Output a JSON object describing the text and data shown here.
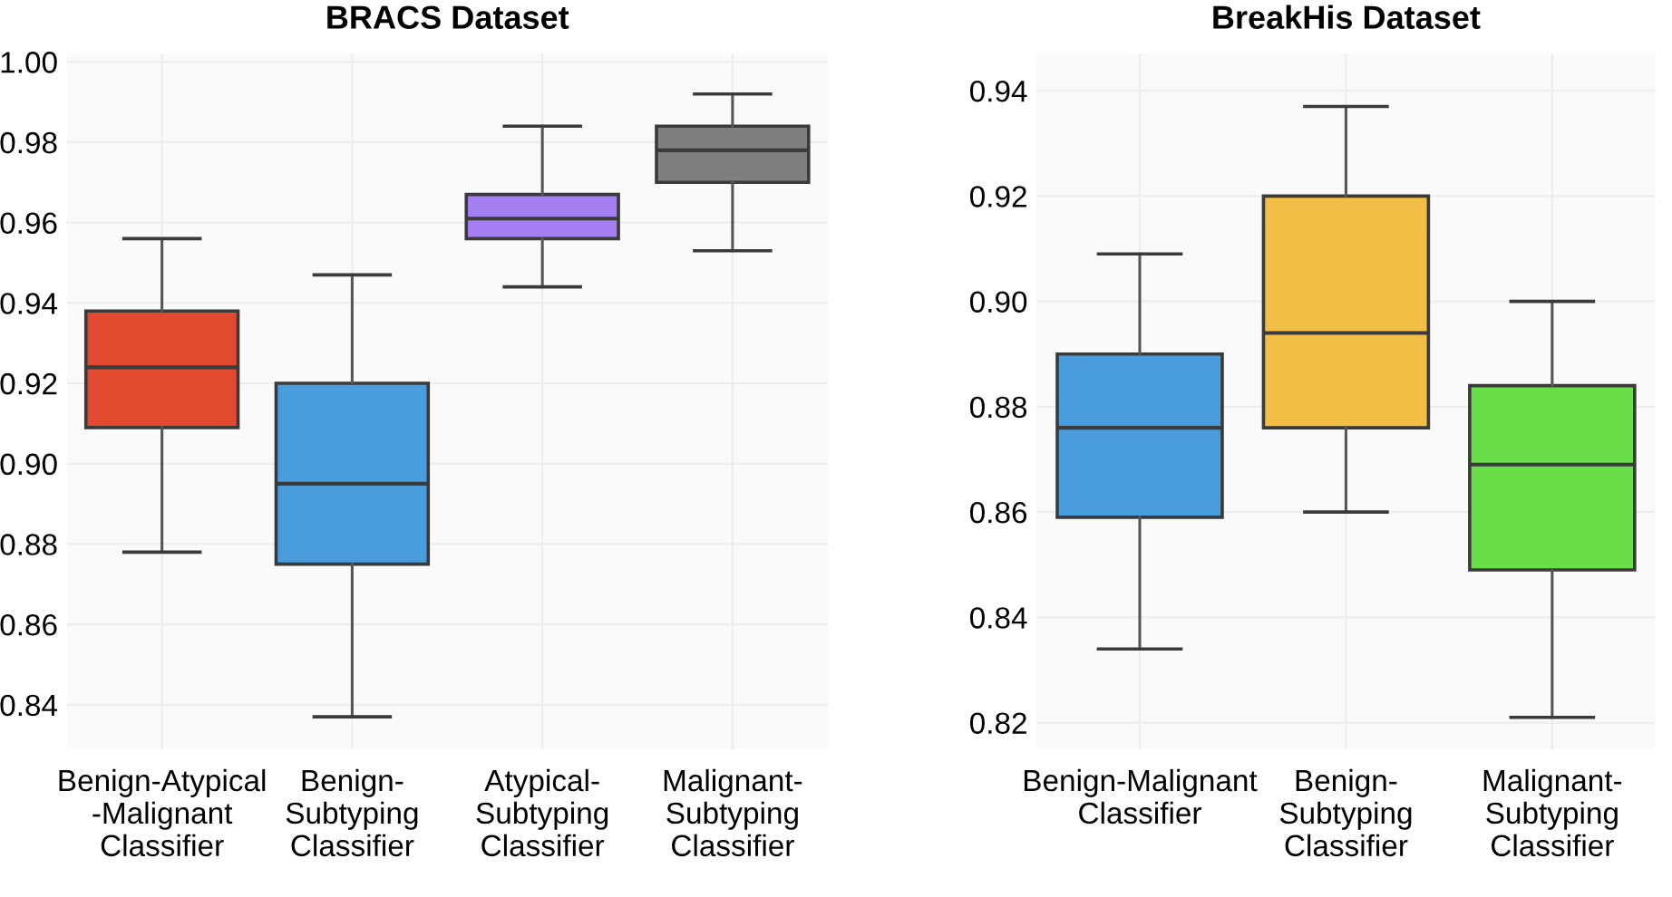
{
  "chart_data": [
    {
      "type": "box",
      "title": "BRACS Dataset",
      "categories": [
        "Benign-Atypical\n-Malignant\nClassifier",
        "Benign-\nSubtyping\nClassifier",
        "Atypical-\nSubtyping\nClassifier",
        "Malignant-\nSubtyping\nClassifier"
      ],
      "colors": [
        "#e24a2f",
        "#4a9ddc",
        "#a47ff2",
        "#7f7f7f"
      ],
      "boxes": [
        {
          "low": 0.878,
          "q1": 0.909,
          "median": 0.924,
          "q3": 0.938,
          "high": 0.956
        },
        {
          "low": 0.837,
          "q1": 0.875,
          "median": 0.895,
          "q3": 0.92,
          "high": 0.947
        },
        {
          "low": 0.944,
          "q1": 0.956,
          "median": 0.961,
          "q3": 0.967,
          "high": 0.984
        },
        {
          "low": 0.953,
          "q1": 0.97,
          "median": 0.978,
          "q3": 0.984,
          "high": 0.992
        }
      ],
      "ylim": [
        0.829,
        1.002
      ],
      "yticks": [
        {
          "value": 0.84,
          "label": "0.84"
        },
        {
          "value": 0.86,
          "label": "0.86"
        },
        {
          "value": 0.88,
          "label": "0.88"
        },
        {
          "value": 0.9,
          "label": "0.90"
        },
        {
          "value": 0.92,
          "label": "0.92"
        },
        {
          "value": 0.94,
          "label": "0.94"
        },
        {
          "value": 0.96,
          "label": "0.96"
        },
        {
          "value": 0.98,
          "label": "0.98"
        },
        {
          "value": 1.0,
          "label": "1.00"
        }
      ],
      "grid": true
    },
    {
      "type": "box",
      "title": "BreakHis Dataset",
      "categories": [
        "Benign-Malignant\nClassifier",
        "Benign-\nSubtyping\nClassifier",
        "Malignant-\nSubtyping\nClassifier"
      ],
      "colors": [
        "#4a9ddc",
        "#f3be45",
        "#6ade48"
      ],
      "boxes": [
        {
          "low": 0.834,
          "q1": 0.859,
          "median": 0.876,
          "q3": 0.89,
          "high": 0.909
        },
        {
          "low": 0.86,
          "q1": 0.876,
          "median": 0.894,
          "q3": 0.92,
          "high": 0.937
        },
        {
          "low": 0.821,
          "q1": 0.849,
          "median": 0.869,
          "q3": 0.884,
          "high": 0.9
        }
      ],
      "ylim": [
        0.815,
        0.947
      ],
      "yticks": [
        {
          "value": 0.82,
          "label": "0.82"
        },
        {
          "value": 0.84,
          "label": "0.84"
        },
        {
          "value": 0.86,
          "label": "0.86"
        },
        {
          "value": 0.88,
          "label": "0.88"
        },
        {
          "value": 0.9,
          "label": "0.90"
        },
        {
          "value": 0.92,
          "label": "0.92"
        },
        {
          "value": 0.94,
          "label": "0.94"
        }
      ],
      "grid": true
    }
  ]
}
